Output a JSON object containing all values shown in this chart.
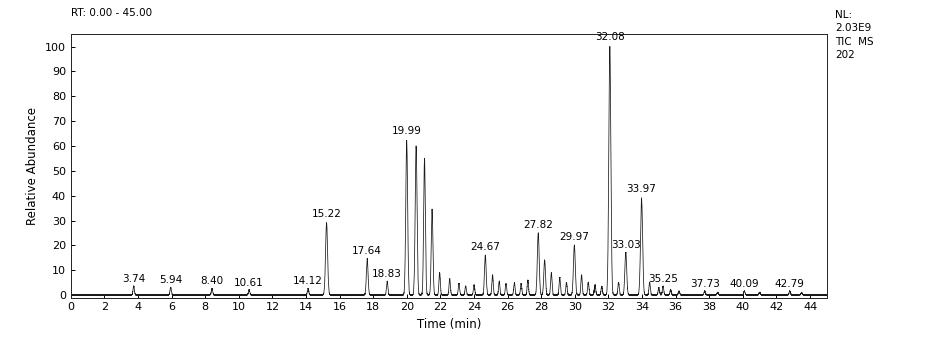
{
  "rt_label": "RT: 0.00 - 45.00",
  "nl_label": "NL:\n2.03E9\nTIC  MS\n202",
  "xlabel": "Time (min)",
  "ylabel": "Relative Abundance",
  "xlim": [
    0,
    45
  ],
  "ylim": [
    -1,
    105
  ],
  "xticks": [
    0,
    2,
    4,
    6,
    8,
    10,
    12,
    14,
    16,
    18,
    20,
    22,
    24,
    26,
    28,
    30,
    32,
    34,
    36,
    38,
    40,
    42,
    44
  ],
  "yticks": [
    0,
    10,
    20,
    30,
    40,
    50,
    60,
    70,
    80,
    90,
    100
  ],
  "peaks": [
    {
      "rt": 3.74,
      "height": 3.5,
      "label": "3.74",
      "sigma": 0.04
    },
    {
      "rt": 5.94,
      "height": 3.0,
      "label": "5.94",
      "sigma": 0.04
    },
    {
      "rt": 8.4,
      "height": 2.5,
      "label": "8.40",
      "sigma": 0.04
    },
    {
      "rt": 10.61,
      "height": 2.0,
      "label": "10.61",
      "sigma": 0.04
    },
    {
      "rt": 14.12,
      "height": 2.5,
      "label": "14.12",
      "sigma": 0.04
    },
    {
      "rt": 15.22,
      "height": 29.0,
      "label": "15.22",
      "sigma": 0.06
    },
    {
      "rt": 17.64,
      "height": 14.5,
      "label": "17.64",
      "sigma": 0.05
    },
    {
      "rt": 18.83,
      "height": 5.5,
      "label": "18.83",
      "sigma": 0.04
    },
    {
      "rt": 19.99,
      "height": 62.0,
      "label": "19.99",
      "sigma": 0.055
    },
    {
      "rt": 20.55,
      "height": 60.0,
      "label": null,
      "sigma": 0.055
    },
    {
      "rt": 21.05,
      "height": 55.0,
      "label": null,
      "sigma": 0.05
    },
    {
      "rt": 21.5,
      "height": 34.5,
      "label": null,
      "sigma": 0.05
    },
    {
      "rt": 21.95,
      "height": 9.0,
      "label": null,
      "sigma": 0.04
    },
    {
      "rt": 22.55,
      "height": 6.5,
      "label": null,
      "sigma": 0.04
    },
    {
      "rt": 23.1,
      "height": 4.5,
      "label": null,
      "sigma": 0.04
    },
    {
      "rt": 23.5,
      "height": 3.5,
      "label": null,
      "sigma": 0.04
    },
    {
      "rt": 24.0,
      "height": 4.0,
      "label": null,
      "sigma": 0.04
    },
    {
      "rt": 24.67,
      "height": 16.0,
      "label": "24.67",
      "sigma": 0.05
    },
    {
      "rt": 25.1,
      "height": 8.0,
      "label": null,
      "sigma": 0.04
    },
    {
      "rt": 25.5,
      "height": 5.5,
      "label": null,
      "sigma": 0.04
    },
    {
      "rt": 25.9,
      "height": 4.5,
      "label": null,
      "sigma": 0.04
    },
    {
      "rt": 26.4,
      "height": 5.0,
      "label": null,
      "sigma": 0.04
    },
    {
      "rt": 26.8,
      "height": 4.5,
      "label": null,
      "sigma": 0.04
    },
    {
      "rt": 27.2,
      "height": 6.0,
      "label": null,
      "sigma": 0.04
    },
    {
      "rt": 27.82,
      "height": 25.0,
      "label": "27.82",
      "sigma": 0.055
    },
    {
      "rt": 28.2,
      "height": 14.0,
      "label": null,
      "sigma": 0.05
    },
    {
      "rt": 28.6,
      "height": 9.0,
      "label": null,
      "sigma": 0.04
    },
    {
      "rt": 29.1,
      "height": 7.0,
      "label": null,
      "sigma": 0.04
    },
    {
      "rt": 29.5,
      "height": 5.0,
      "label": null,
      "sigma": 0.04
    },
    {
      "rt": 29.97,
      "height": 20.0,
      "label": "29.97",
      "sigma": 0.055
    },
    {
      "rt": 30.4,
      "height": 8.0,
      "label": null,
      "sigma": 0.04
    },
    {
      "rt": 30.8,
      "height": 5.0,
      "label": null,
      "sigma": 0.04
    },
    {
      "rt": 31.2,
      "height": 4.0,
      "label": null,
      "sigma": 0.04
    },
    {
      "rt": 31.6,
      "height": 3.5,
      "label": null,
      "sigma": 0.04
    },
    {
      "rt": 32.08,
      "height": 100.0,
      "label": "32.08",
      "sigma": 0.06
    },
    {
      "rt": 32.6,
      "height": 5.0,
      "label": null,
      "sigma": 0.04
    },
    {
      "rt": 33.03,
      "height": 17.0,
      "label": "33.03",
      "sigma": 0.055
    },
    {
      "rt": 33.97,
      "height": 39.0,
      "label": "33.97",
      "sigma": 0.06
    },
    {
      "rt": 34.45,
      "height": 5.0,
      "label": null,
      "sigma": 0.04
    },
    {
      "rt": 35.0,
      "height": 3.0,
      "label": null,
      "sigma": 0.04
    },
    {
      "rt": 35.25,
      "height": 3.5,
      "label": "35.25",
      "sigma": 0.04
    },
    {
      "rt": 35.7,
      "height": 2.0,
      "label": null,
      "sigma": 0.04
    },
    {
      "rt": 36.2,
      "height": 1.5,
      "label": null,
      "sigma": 0.04
    },
    {
      "rt": 37.73,
      "height": 1.5,
      "label": "37.73",
      "sigma": 0.04
    },
    {
      "rt": 38.5,
      "height": 1.0,
      "label": null,
      "sigma": 0.04
    },
    {
      "rt": 40.09,
      "height": 1.5,
      "label": "40.09",
      "sigma": 0.04
    },
    {
      "rt": 41.0,
      "height": 1.0,
      "label": null,
      "sigma": 0.04
    },
    {
      "rt": 42.79,
      "height": 1.5,
      "label": "42.79",
      "sigma": 0.04
    },
    {
      "rt": 43.5,
      "height": 0.8,
      "label": null,
      "sigma": 0.04
    }
  ],
  "line_color": "#1a1a1a",
  "bg_color": "#ffffff",
  "label_fontsize": 7.0,
  "axis_fontsize": 8.5,
  "anno_fontsize": 7.5
}
